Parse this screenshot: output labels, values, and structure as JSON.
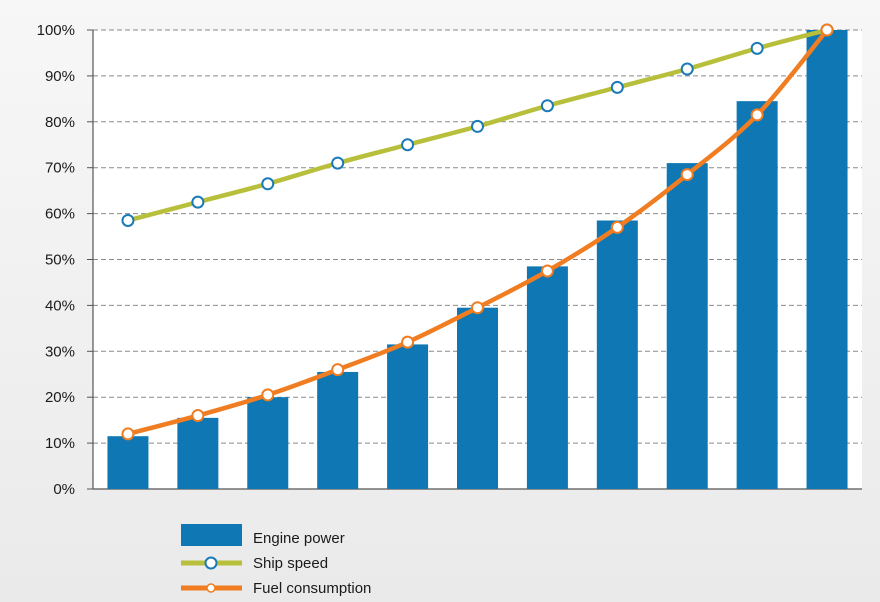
{
  "chart_data": {
    "type": "bar",
    "categories": [
      "",
      "",
      "",
      "",
      "",
      "",
      "",
      "",
      "",
      "",
      ""
    ],
    "series": [
      {
        "name": "Engine power",
        "kind": "bar",
        "color": "#0f78b4",
        "values": [
          11.5,
          15.5,
          20,
          25.5,
          31.5,
          39.5,
          48.5,
          58.5,
          71,
          84.5,
          100
        ]
      },
      {
        "name": "Ship speed",
        "kind": "line",
        "color": "#b7bf3b",
        "values": [
          58.5,
          62.5,
          66.5,
          71,
          75,
          79,
          83.5,
          87.5,
          91.5,
          96,
          100
        ]
      },
      {
        "name": "Fuel consumption",
        "kind": "line",
        "color": "#f07d22",
        "values": [
          12,
          16,
          20.5,
          26,
          32,
          39.5,
          47.5,
          57,
          68.5,
          81.5,
          100
        ]
      }
    ],
    "yticks": [
      "0%",
      "10%",
      "20%",
      "30%",
      "40%",
      "50%",
      "60%",
      "70%",
      "80%",
      "90%",
      "100%"
    ],
    "ylim": [
      0,
      100
    ],
    "grid": true,
    "legend_position": "bottom-left",
    "title": "",
    "xlabel": "",
    "ylabel": ""
  }
}
